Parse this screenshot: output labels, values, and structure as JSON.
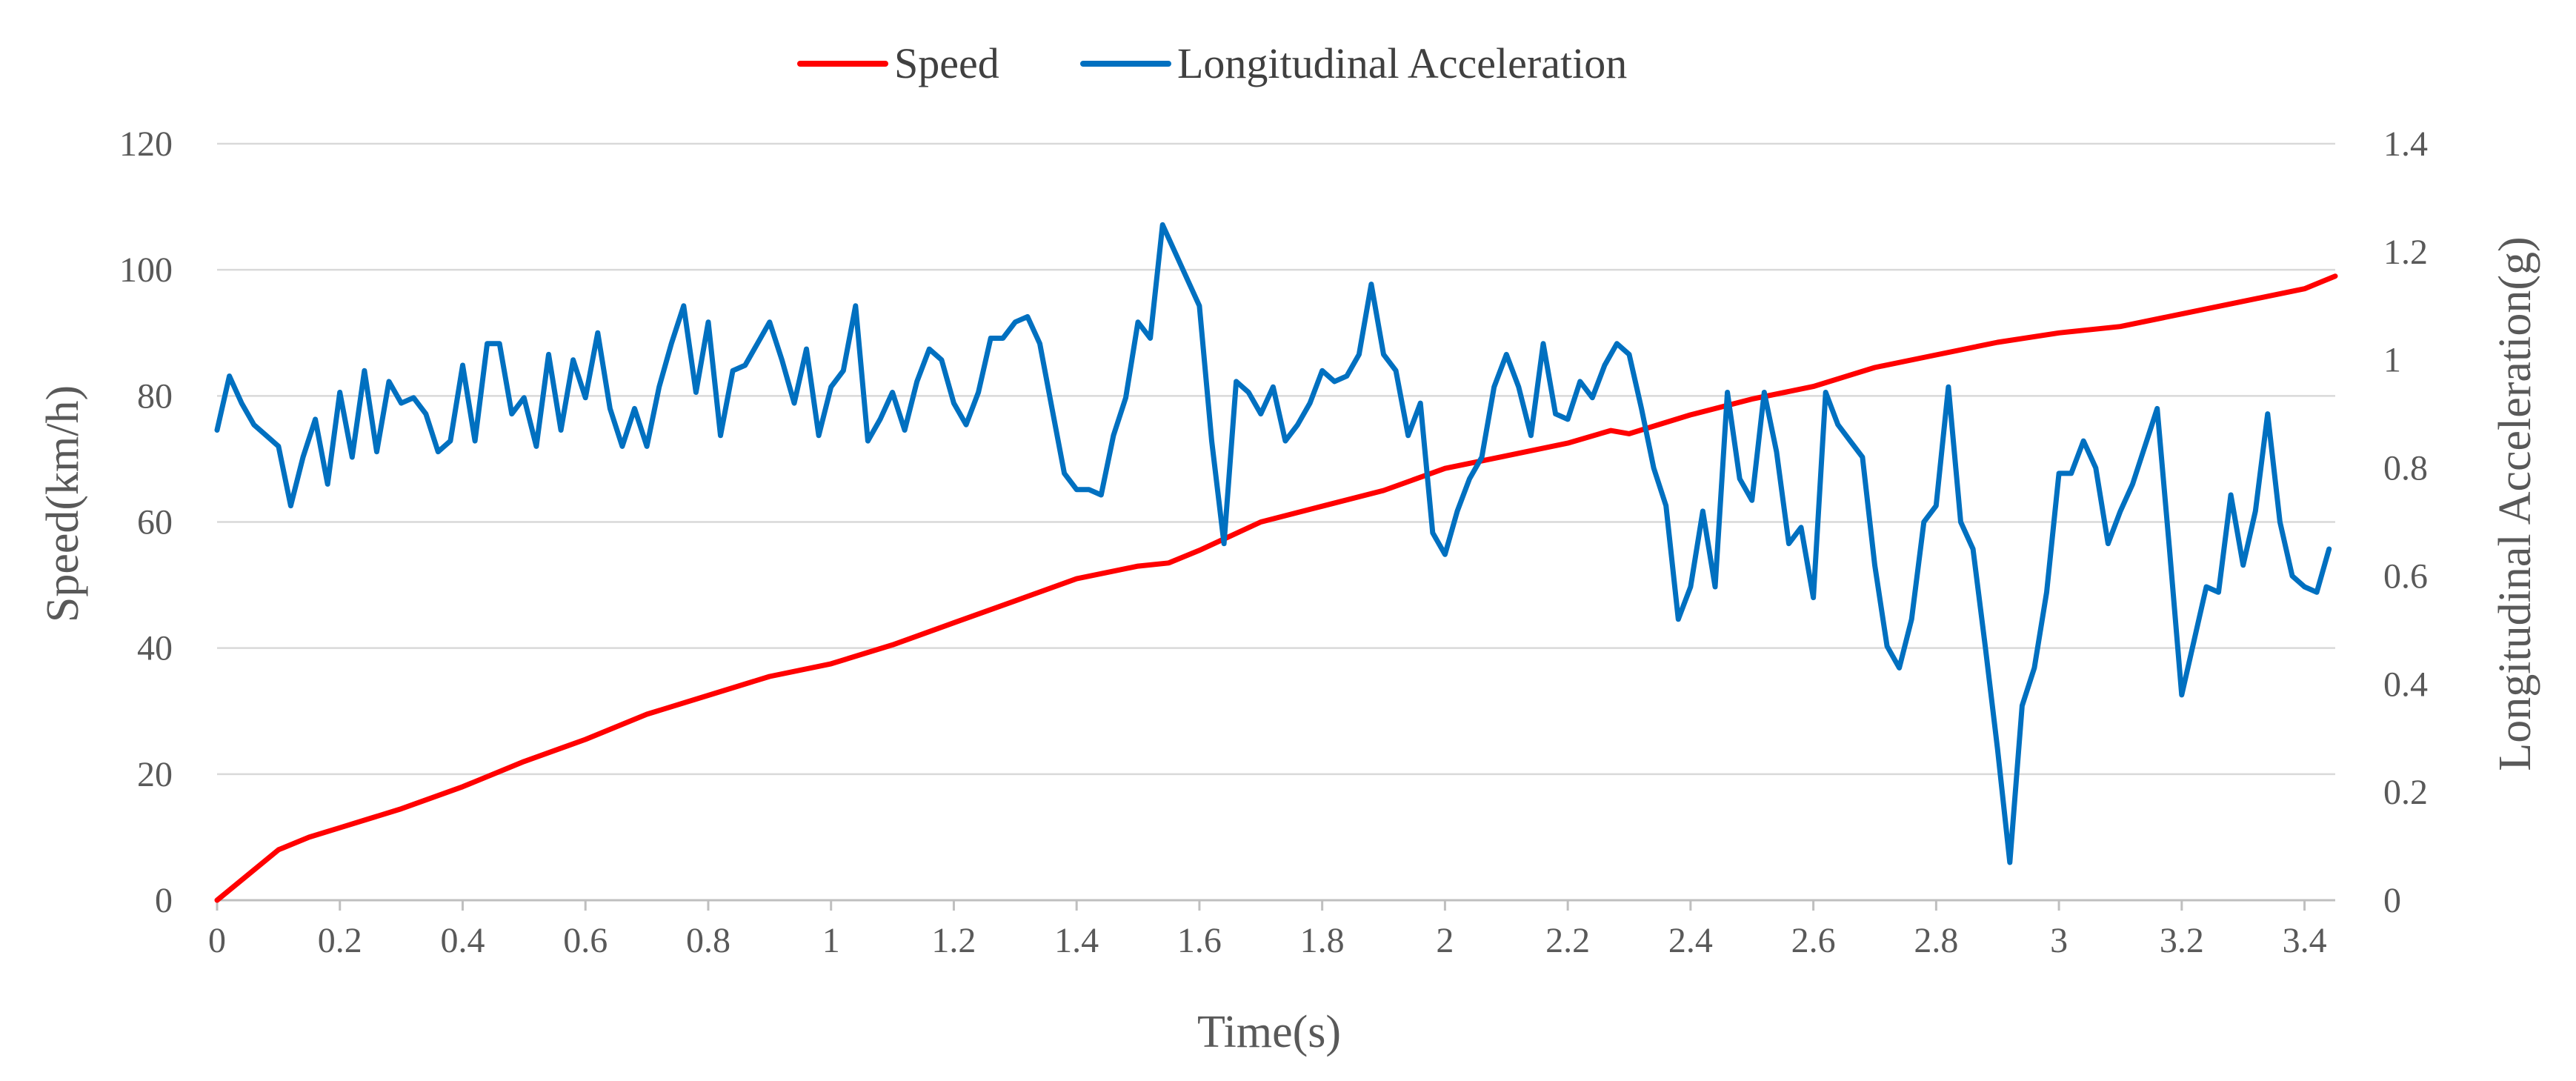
{
  "chart_data": {
    "type": "line",
    "title": "",
    "xlabel": "Time(s)",
    "ylabel": "Speed(km/h)",
    "ylabel_right": "Longitudinal Acceleration(g)",
    "xlim": [
      0,
      3.45
    ],
    "ylim": [
      0,
      120
    ],
    "ylim_right": [
      0,
      1.4
    ],
    "xticks": [
      "0",
      "0.2",
      "0.4",
      "0.6",
      "0.8",
      "1",
      "1.2",
      "1.4",
      "1.6",
      "1.8",
      "2",
      "2.2",
      "2.4",
      "2.6",
      "2.8",
      "3",
      "3.2",
      "3.4"
    ],
    "xtick_values": [
      0,
      0.2,
      0.4,
      0.6,
      0.8,
      1,
      1.2,
      1.4,
      1.6,
      1.8,
      2,
      2.2,
      2.4,
      2.6,
      2.8,
      3,
      3.2,
      3.4
    ],
    "yticks": [
      "0",
      "20",
      "40",
      "60",
      "80",
      "100",
      "120"
    ],
    "ytick_values": [
      0,
      20,
      40,
      60,
      80,
      100,
      120
    ],
    "yticks_right": [
      "0",
      "0.2",
      "0.4",
      "0.6",
      "0.8",
      "1",
      "1.2",
      "1.4"
    ],
    "ytick_values_right": [
      0,
      0.2,
      0.4,
      0.6,
      0.8,
      1,
      1.2,
      1.4
    ],
    "grid": true,
    "legend_position": "top-center",
    "colors": {
      "speed": "#ff0000",
      "acceleration": "#0070c0",
      "grid": "#d9d9d9"
    },
    "series": [
      {
        "name": "Speed",
        "axis": "left",
        "x": [
          0,
          0.05,
          0.1,
          0.15,
          0.2,
          0.25,
          0.3,
          0.4,
          0.5,
          0.6,
          0.7,
          0.8,
          0.9,
          1.0,
          1.1,
          1.2,
          1.3,
          1.4,
          1.5,
          1.55,
          1.6,
          1.7,
          1.8,
          1.9,
          2.0,
          2.1,
          2.2,
          2.27,
          2.3,
          2.4,
          2.5,
          2.6,
          2.7,
          2.8,
          2.9,
          3.0,
          3.1,
          3.2,
          3.3,
          3.4,
          3.45
        ],
        "y": [
          0,
          4,
          8,
          10,
          11.5,
          13,
          14.5,
          18,
          22,
          25.5,
          29.5,
          32.5,
          35.5,
          37.5,
          40.5,
          44,
          47.5,
          51,
          53,
          53.5,
          55.5,
          60,
          62.5,
          65,
          68.5,
          70.5,
          72.5,
          74.5,
          74,
          77,
          79.5,
          81.5,
          84.5,
          86.5,
          88.5,
          90,
          91,
          93,
          95,
          97,
          99
        ]
      },
      {
        "name": "Longitudinal Acceleration",
        "axis": "right",
        "x": [
          0,
          0.02,
          0.04,
          0.06,
          0.08,
          0.1,
          0.12,
          0.14,
          0.16,
          0.18,
          0.2,
          0.22,
          0.24,
          0.26,
          0.28,
          0.3,
          0.32,
          0.34,
          0.36,
          0.38,
          0.4,
          0.42,
          0.44,
          0.46,
          0.48,
          0.5,
          0.52,
          0.54,
          0.56,
          0.58,
          0.6,
          0.62,
          0.64,
          0.66,
          0.68,
          0.7,
          0.72,
          0.74,
          0.76,
          0.78,
          0.8,
          0.82,
          0.84,
          0.86,
          0.88,
          0.9,
          0.92,
          0.94,
          0.96,
          0.98,
          1.0,
          1.02,
          1.04,
          1.06,
          1.08,
          1.1,
          1.12,
          1.14,
          1.16,
          1.18,
          1.2,
          1.22,
          1.24,
          1.26,
          1.28,
          1.3,
          1.32,
          1.34,
          1.36,
          1.38,
          1.4,
          1.42,
          1.44,
          1.46,
          1.48,
          1.5,
          1.52,
          1.54,
          1.56,
          1.58,
          1.6,
          1.62,
          1.64,
          1.66,
          1.68,
          1.7,
          1.72,
          1.74,
          1.76,
          1.78,
          1.8,
          1.82,
          1.84,
          1.86,
          1.88,
          1.9,
          1.92,
          1.94,
          1.96,
          1.98,
          2.0,
          2.02,
          2.04,
          2.06,
          2.08,
          2.1,
          2.12,
          2.14,
          2.16,
          2.18,
          2.2,
          2.22,
          2.24,
          2.26,
          2.28,
          2.3,
          2.32,
          2.34,
          2.36,
          2.38,
          2.4,
          2.42,
          2.44,
          2.46,
          2.48,
          2.5,
          2.52,
          2.54,
          2.56,
          2.58,
          2.6,
          2.62,
          2.64,
          2.66,
          2.68,
          2.7,
          2.72,
          2.74,
          2.76,
          2.78,
          2.8,
          2.82,
          2.84,
          2.86,
          2.88,
          2.9,
          2.92,
          2.94,
          2.96,
          2.98,
          3.0,
          3.02,
          3.04,
          3.06,
          3.08,
          3.1,
          3.12,
          3.14,
          3.16,
          3.18,
          3.2,
          3.22,
          3.24,
          3.26,
          3.28,
          3.3,
          3.32,
          3.34,
          3.36,
          3.38,
          3.4,
          3.42,
          3.44
        ],
        "y": [
          0.87,
          0.97,
          0.92,
          0.88,
          0.86,
          0.84,
          0.73,
          0.82,
          0.89,
          0.77,
          0.94,
          0.82,
          0.98,
          0.83,
          0.96,
          0.92,
          0.93,
          0.9,
          0.83,
          0.85,
          0.99,
          0.85,
          1.03,
          1.03,
          0.9,
          0.93,
          0.84,
          1.01,
          0.87,
          1.0,
          0.93,
          1.05,
          0.91,
          0.84,
          0.91,
          0.84,
          0.95,
          1.03,
          1.1,
          0.94,
          1.07,
          0.86,
          0.98,
          0.99,
          1.03,
          1.07,
          1.0,
          0.92,
          1.02,
          0.86,
          0.95,
          0.98,
          1.1,
          0.85,
          0.89,
          0.94,
          0.87,
          0.96,
          1.02,
          1.0,
          0.92,
          0.88,
          0.94,
          1.04,
          1.04,
          1.07,
          1.08,
          1.03,
          0.91,
          0.79,
          0.76,
          0.76,
          0.75,
          0.86,
          0.93,
          1.07,
          1.04,
          1.25,
          1.2,
          1.15,
          1.1,
          0.85,
          0.66,
          0.96,
          0.94,
          0.9,
          0.95,
          0.85,
          0.88,
          0.92,
          0.98,
          0.96,
          0.97,
          1.01,
          1.14,
          1.01,
          0.98,
          0.86,
          0.92,
          0.68,
          0.64,
          0.72,
          0.78,
          0.82,
          0.95,
          1.01,
          0.95,
          0.86,
          1.03,
          0.9,
          0.89,
          0.96,
          0.93,
          0.99,
          1.03,
          1.01,
          0.91,
          0.8,
          0.73,
          0.52,
          0.58,
          0.72,
          0.58,
          0.94,
          0.78,
          0.74,
          0.94,
          0.83,
          0.66,
          0.69,
          0.56,
          0.94,
          0.88,
          0.85,
          0.82,
          0.62,
          0.47,
          0.43,
          0.52,
          0.7,
          0.73,
          0.95,
          0.7,
          0.65,
          0.47,
          0.28,
          0.07,
          0.36,
          0.43,
          0.57,
          0.79,
          0.79,
          0.85,
          0.8,
          0.66,
          0.72,
          0.77,
          0.84,
          0.91,
          0.65,
          0.38,
          0.48,
          0.58,
          0.57,
          0.75,
          0.62,
          0.72,
          0.9,
          0.7,
          0.6,
          0.58,
          0.57,
          0.65
        ]
      }
    ]
  }
}
